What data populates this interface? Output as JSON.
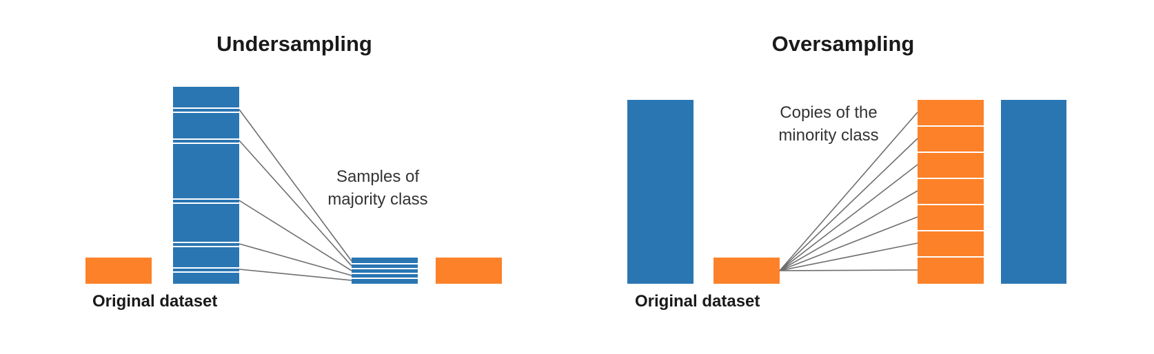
{
  "colors": {
    "majority": "#2a76b3",
    "minority": "#fd8129",
    "line": "#6e6e6e",
    "stripe": "#ffffff"
  },
  "undersampling": {
    "title": "Undersampling",
    "caption": "Original dataset",
    "annotation": [
      "Samples of",
      "majority class"
    ]
  },
  "oversampling": {
    "title": "Oversampling",
    "caption": "Original dataset",
    "annotation": [
      "Copies of the",
      "minority class"
    ]
  }
}
